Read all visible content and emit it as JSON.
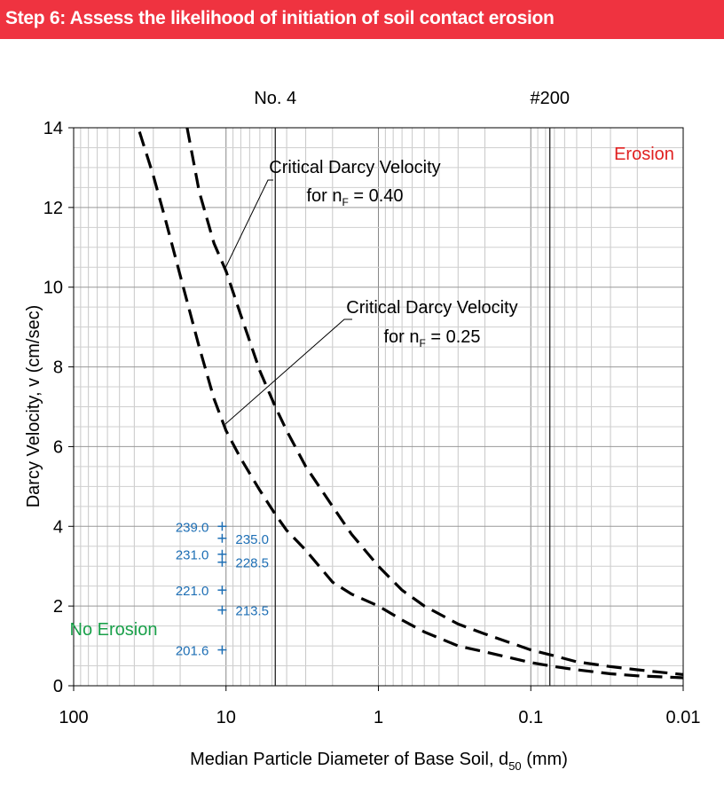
{
  "header": {
    "title": "Step 6: Assess the likelihood of initiation of soil contact erosion",
    "background_color": "#ef3340"
  },
  "chart_data": {
    "type": "line",
    "xscale": "log",
    "x_reversed": true,
    "xlim": [
      100,
      0.01
    ],
    "ylim": [
      0,
      14
    ],
    "xlabel": "Median Particle Diameter of Base Soil, d",
    "xlabel_sub": "50",
    "xlabel_unit": " (mm)",
    "ylabel": "Darcy Velocity,  v (cm/sec)",
    "x_ticks": [
      {
        "value": 100,
        "label": "100"
      },
      {
        "value": 10,
        "label": "10"
      },
      {
        "value": 1,
        "label": "1"
      },
      {
        "value": 0.1,
        "label": "0.1"
      },
      {
        "value": 0.01,
        "label": "0.01"
      }
    ],
    "y_ticks": [
      {
        "value": 0,
        "label": "0"
      },
      {
        "value": 2,
        "label": "2"
      },
      {
        "value": 4,
        "label": "4"
      },
      {
        "value": 6,
        "label": "6"
      },
      {
        "value": 8,
        "label": "8"
      },
      {
        "value": 10,
        "label": "10"
      },
      {
        "value": 12,
        "label": "12"
      },
      {
        "value": 14,
        "label": "14"
      }
    ],
    "grid": true,
    "sieve_lines": [
      {
        "value": 4.75,
        "label": "No. 4"
      },
      {
        "value": 0.075,
        "label": "#200"
      }
    ],
    "series": [
      {
        "label_line1": "Critical Darcy Velocity",
        "label_line2_prefix": "for n",
        "label_line2_sub": "F",
        "label_line2_suffix": " = 0.40",
        "x": [
          18,
          15,
          12,
          10,
          8,
          6,
          4.75,
          4,
          3,
          2,
          1.5,
          1,
          0.7,
          0.5,
          0.3,
          0.2,
          0.1,
          0.07,
          0.05,
          0.03,
          0.02,
          0.01
        ],
        "y": [
          14,
          12.4,
          11.1,
          10.4,
          9.3,
          7.9,
          7.0,
          6.4,
          5.5,
          4.5,
          3.8,
          3.0,
          2.4,
          2.0,
          1.55,
          1.3,
          0.9,
          0.75,
          0.6,
          0.48,
          0.4,
          0.28
        ]
      },
      {
        "label_line1": "Critical Darcy Velocity",
        "label_line2_prefix": "for n",
        "label_line2_sub": "F",
        "label_line2_suffix": " = 0.25",
        "x": [
          37,
          30,
          25,
          20,
          15,
          12,
          10,
          8,
          6,
          4.75,
          4,
          3,
          2,
          1.5,
          1,
          0.7,
          0.5,
          0.3,
          0.2,
          0.1,
          0.07,
          0.05,
          0.03,
          0.02,
          0.01
        ],
        "y": [
          13.9,
          12.8,
          11.7,
          10.3,
          8.5,
          7.2,
          6.4,
          5.7,
          4.9,
          4.3,
          3.9,
          3.4,
          2.6,
          2.3,
          2.0,
          1.65,
          1.35,
          1.0,
          0.85,
          0.58,
          0.48,
          0.4,
          0.3,
          0.25,
          0.2
        ]
      }
    ],
    "points": [
      {
        "label": "239.0",
        "x": 10.6,
        "y": 4.0,
        "label_side": "left"
      },
      {
        "label": "235.0",
        "x": 10.6,
        "y": 3.7,
        "label_side": "right"
      },
      {
        "label": "231.0",
        "x": 10.6,
        "y": 3.3,
        "label_side": "left"
      },
      {
        "label": "228.5",
        "x": 10.6,
        "y": 3.1,
        "label_side": "right"
      },
      {
        "label": "221.0",
        "x": 10.6,
        "y": 2.4,
        "label_side": "left"
      },
      {
        "label": "213.5",
        "x": 10.6,
        "y": 1.9,
        "label_side": "right"
      },
      {
        "label": "201.6",
        "x": 10.6,
        "y": 0.9,
        "label_side": "left"
      }
    ],
    "region_labels": [
      {
        "text": "Erosion",
        "color": "#e02020"
      },
      {
        "text": "No Erosion",
        "color": "#1aa04a"
      }
    ],
    "point_color": "#1e6fb5"
  }
}
